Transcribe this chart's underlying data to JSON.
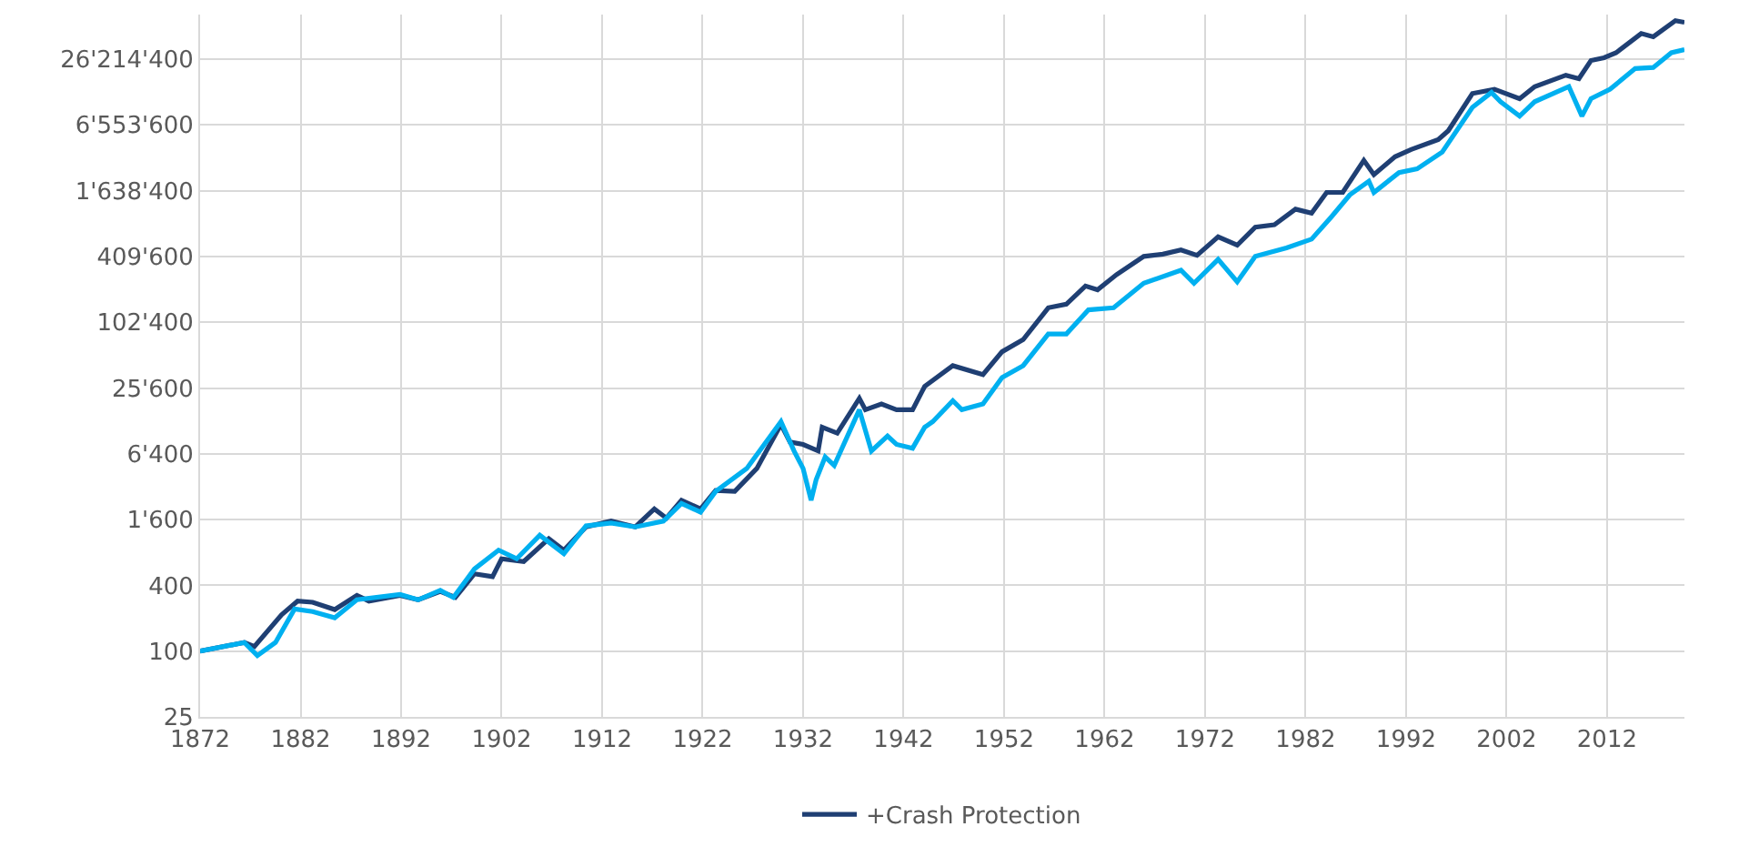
{
  "chart_data": {
    "type": "line",
    "log": true,
    "grid": true,
    "legend": "bottom",
    "line_style": "solid",
    "marker": "none",
    "xlim": [
      1872,
      2019.7
    ],
    "xticks": [
      1872,
      1882,
      1892,
      1902,
      1912,
      1922,
      1932,
      1942,
      1952,
      1962,
      1972,
      1982,
      1992,
      2002,
      2012
    ],
    "ylim": [
      25,
      67108864
    ],
    "yticks": [
      25,
      100,
      400,
      {
        "value": 1600,
        "label": "1'600"
      },
      {
        "value": 6400,
        "label": "6'400"
      },
      {
        "value": 25600,
        "label": "25'600"
      },
      {
        "value": 102400,
        "label": "102'400"
      },
      {
        "value": 409600,
        "label": "409'600"
      },
      {
        "value": 1638400,
        "label": "1'638'400"
      },
      {
        "value": 6553600,
        "label": "6'553'600"
      },
      {
        "value": 26214400,
        "label": "26'214'400"
      }
    ],
    "series": [
      {
        "name": "+Crash Protection",
        "color": "#1f3f73",
        "x": [
          1872,
          1876.4,
          1877.4,
          1880.1,
          1881.7,
          1883.2,
          1885.4,
          1887.6,
          1888.8,
          1891.9,
          1893.7,
          1895.9,
          1897.4,
          1899.3,
          1901.1,
          1902,
          1904.2,
          1906.7,
          1908.2,
          1910.4,
          1912.9,
          1915.3,
          1917.2,
          1918.4,
          1919.9,
          1921.8,
          1923.3,
          1925.2,
          1927.4,
          1929.8,
          1930.7,
          1932,
          1933.5,
          1933.9,
          1935.4,
          1937.6,
          1938.2,
          1939.8,
          1941.3,
          1942.9,
          1944.1,
          1946.9,
          1949.9,
          1951.8,
          1953.9,
          1956.4,
          1958.2,
          1960.1,
          1961.3,
          1963.2,
          1965.9,
          1967.8,
          1969.6,
          1971.2,
          1973.3,
          1975.2,
          1977,
          1978.9,
          1981,
          1982.6,
          1984.1,
          1985.7,
          1987.8,
          1988.8,
          1990.9,
          1992.5,
          1995.2,
          1996.2,
          1998.6,
          2000.8,
          2003.3,
          2004.8,
          2007.9,
          2009.2,
          2010.4,
          2011.7,
          2012.9,
          2015.4,
          2016.6,
          2018.8,
          2019.7
        ],
        "values": [
          100,
          120,
          110,
          215,
          287,
          280,
          240,
          324,
          287,
          324,
          295,
          352,
          310,
          510,
          480,
          700,
          660,
          1070,
          840,
          1370,
          1550,
          1370,
          2000,
          1650,
          2400,
          2000,
          2950,
          2900,
          4700,
          11900,
          8200,
          7800,
          6800,
          11200,
          9900,
          20600,
          16200,
          18300,
          16200,
          16200,
          26500,
          41000,
          34000,
          55000,
          71000,
          139000,
          150000,
          220000,
          203000,
          280000,
          410000,
          430000,
          470000,
          420000,
          620000,
          520000,
          760000,
          800000,
          1110000,
          1020000,
          1580000,
          1580000,
          3100000,
          2300000,
          3350000,
          3900000,
          4800000,
          5800000,
          12700000,
          13900000,
          11400000,
          14700000,
          18700000,
          17400000,
          25500000,
          27000000,
          30000000,
          45000000,
          42000000,
          59000000,
          57000000
        ]
      },
      {
        "color": "#00b0f0",
        "x": [
          1872,
          1876.4,
          1877.7,
          1879.5,
          1881.4,
          1883.2,
          1885.4,
          1887.6,
          1891.9,
          1893.7,
          1895.9,
          1897.2,
          1899.3,
          1901.7,
          1903.5,
          1905.8,
          1908.2,
          1910.4,
          1912.9,
          1915.3,
          1918.1,
          1919.9,
          1921.8,
          1923.3,
          1926.4,
          1929.8,
          1931.1,
          1932,
          1932.8,
          1933.3,
          1934.2,
          1935.1,
          1937.6,
          1938.8,
          1940.4,
          1941.3,
          1942.9,
          1944.1,
          1944.9,
          1946.9,
          1947.8,
          1949.9,
          1951.8,
          1953.9,
          1956.4,
          1958.2,
          1960.4,
          1962.9,
          1965.9,
          1969.6,
          1970.9,
          1973.3,
          1975.2,
          1977,
          1980.1,
          1982.6,
          1984.6,
          1986.4,
          1988.3,
          1988.8,
          1991.3,
          1993.1,
          1995.6,
          1998.6,
          2000.5,
          2001.4,
          2003.3,
          2004.8,
          2008.2,
          2009.5,
          2010.4,
          2012.3,
          2014.8,
          2016.6,
          2018.4,
          2019.7
        ],
        "values": [
          100,
          120,
          91,
          120,
          243,
          230,
          202,
          295,
          330,
          295,
          360,
          310,
          565,
          840,
          700,
          1150,
          780,
          1400,
          1490,
          1370,
          1550,
          2250,
          1870,
          2900,
          4700,
          12600,
          6800,
          4700,
          2400,
          3700,
          6000,
          5000,
          16200,
          6800,
          9300,
          7800,
          7200,
          11200,
          12600,
          19600,
          16200,
          18300,
          32000,
          41000,
          80000,
          80000,
          133000,
          139000,
          233000,
          307000,
          233000,
          385000,
          240000,
          410000,
          490000,
          590000,
          950000,
          1500000,
          2000000,
          1580000,
          2400000,
          2600000,
          3700000,
          9500000,
          13000000,
          10700000,
          7900000,
          10700000,
          14700000,
          7900000,
          11400000,
          13900000,
          21500000,
          22000000,
          30000000,
          32000000
        ]
      }
    ]
  }
}
